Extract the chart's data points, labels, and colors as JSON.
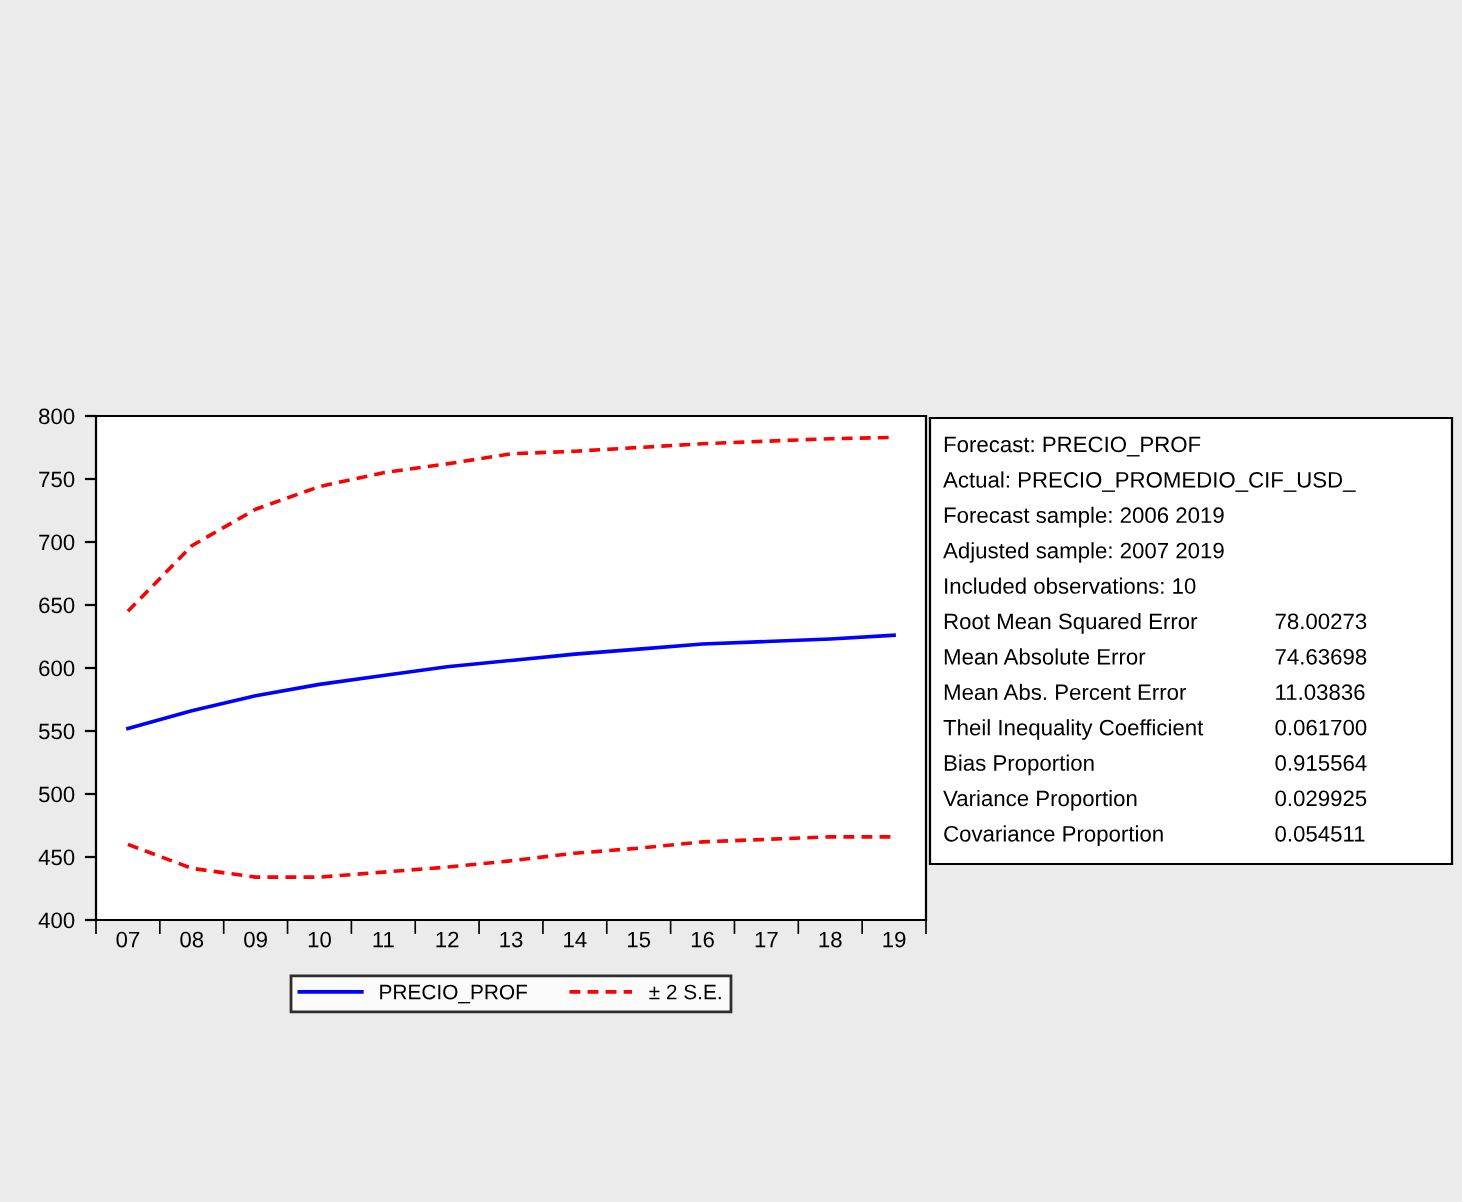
{
  "chart_data": [
    {
      "type": "line",
      "categories": [
        "07",
        "08",
        "09",
        "10",
        "11",
        "12",
        "13",
        "14",
        "15",
        "16",
        "17",
        "18",
        "19"
      ],
      "series": [
        {
          "name": "PRECIO_PROF",
          "color": "#0000ff",
          "line_style": "solid",
          "values": [
            552,
            566,
            578,
            587,
            594,
            601,
            606,
            611,
            615,
            619,
            621,
            623,
            626
          ]
        },
        {
          "name": "± 2 S.E.",
          "color": "#ff0000",
          "line_style": "dashed",
          "values": [
            645,
            697,
            726,
            744,
            755,
            762,
            770,
            772,
            775,
            778,
            780,
            782,
            783
          ]
        },
        {
          "color": "#ff0000",
          "line_style": "dashed",
          "values": [
            460,
            441,
            434,
            434,
            438,
            442,
            447,
            453,
            457,
            462,
            464,
            466,
            466
          ]
        }
      ],
      "ylim": [
        400,
        800
      ],
      "yticks": [
        400,
        450,
        500,
        550,
        600,
        650,
        700,
        750,
        800
      ],
      "grid": false,
      "legend": "bottom"
    },
    {
      "type": "other",
      "annotations": [
        "Forecast: PRECIO_PROF",
        "Actual: PRECIO_PROMEDIO_CIF_USD_",
        "Forecast sample: 2006 2019",
        "Adjusted sample: 2007 2019",
        "Included observations: 10"
      ],
      "categories": [
        "Root Mean Squared Error",
        "Mean Absolute Error",
        "Mean Abs. Percent Error",
        "Theil Inequality Coefficient",
        "Bias Proportion",
        "Variance Proportion",
        "Covariance Proportion"
      ],
      "value_labels": [
        "78.00273",
        "74.63698",
        "11.03836",
        "0.061700",
        "0.915564",
        "0.029925",
        "0.054511"
      ]
    }
  ]
}
